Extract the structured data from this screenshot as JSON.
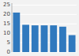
{
  "chart_data": {
    "type": "bar",
    "categories": [
      null,
      null,
      null,
      null,
      null,
      null,
      null
    ],
    "values": [
      21.0,
      14.5,
      14.2,
      14.2,
      14.2,
      13.5,
      9.0
    ],
    "color": "#3079be",
    "ylim": [
      0,
      26
    ],
    "yticks": [
      0,
      5,
      10,
      15,
      20,
      25
    ],
    "grid": true,
    "tick_labels": "y"
  }
}
